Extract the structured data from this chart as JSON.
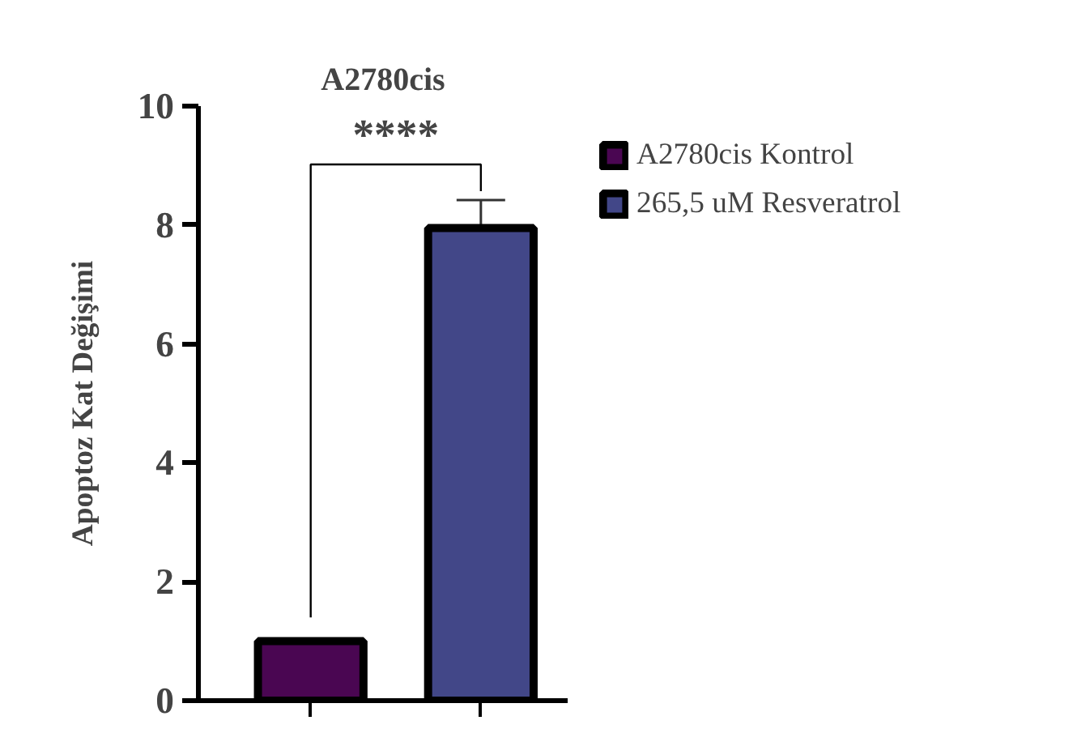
{
  "chart_data": {
    "type": "bar",
    "title": "A2780cis",
    "ylabel": "Apoptoz Kat Değişimi",
    "categories": [
      null,
      null
    ],
    "series": [
      {
        "name": "A2780cis Kontrol",
        "color": "#4a0652",
        "values": [
          1.0,
          null
        ]
      },
      {
        "name": "265,5 uM Resveratrol",
        "color": "#424788",
        "values": [
          null,
          7.95
        ],
        "errors": [
          null,
          0.47
        ]
      }
    ],
    "ylim": [
      0,
      10
    ],
    "yticks": [
      0,
      2,
      4,
      6,
      8,
      10
    ],
    "grid": false,
    "legend": "top right",
    "annotations": [
      "****"
    ]
  }
}
